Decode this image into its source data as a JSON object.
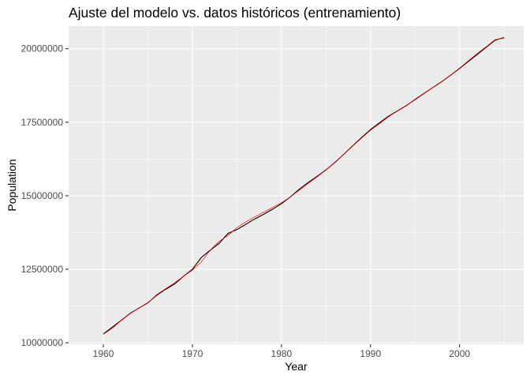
{
  "chart_data": {
    "type": "line",
    "title": "Ajuste del modelo vs. datos históricos (entrenamiento)",
    "xlabel": "Year",
    "ylabel": "Population",
    "xlim": [
      1956.1,
      2007.2
    ],
    "ylim": [
      9950000,
      20770000
    ],
    "x_ticks": [
      1960,
      1970,
      1980,
      1990,
      2000
    ],
    "y_ticks": [
      10000000,
      12500000,
      15000000,
      17500000,
      20000000
    ],
    "y_tick_labels": [
      "10000000",
      "12500000",
      "15000000",
      "17500000",
      "20000000"
    ],
    "x_minor_ticks": [
      1965,
      1975,
      1985,
      1995,
      2005
    ],
    "y_minor_ticks": [
      11250000,
      13750000,
      16250000,
      18750000
    ],
    "background": "#EBEBEB",
    "grid": true,
    "grid_color": "#FFFFFF",
    "legend": "none",
    "x": [
      1960,
      1961,
      1962,
      1963,
      1964,
      1965,
      1966,
      1967,
      1968,
      1969,
      1970,
      1971,
      1972,
      1973,
      1974,
      1975,
      1976,
      1977,
      1978,
      1979,
      1980,
      1981,
      1982,
      1983,
      1984,
      1985,
      1986,
      1987,
      1988,
      1989,
      1990,
      1991,
      1992,
      1993,
      1994,
      1995,
      1996,
      1997,
      1998,
      1999,
      2000,
      2001,
      2002,
      2003,
      2004,
      2005
    ],
    "series": [
      {
        "color": "#000000",
        "width": 1.1,
        "values": [
          10300000,
          10530000,
          10760000,
          11000000,
          11180000,
          11360000,
          11620000,
          11820000,
          12000000,
          12260000,
          12500000,
          12900000,
          13150000,
          13380000,
          13720000,
          13850000,
          14030000,
          14210000,
          14370000,
          14540000,
          14730000,
          14960000,
          15220000,
          15450000,
          15660000,
          15880000,
          16130000,
          16410000,
          16700000,
          16980000,
          17250000,
          17480000,
          17700000,
          17880000,
          18060000,
          18270000,
          18480000,
          18680000,
          18880000,
          19100000,
          19330000,
          19570000,
          19810000,
          20050000,
          20290000,
          20380000
        ]
      },
      {
        "color": "#FF0000",
        "width": 0.7,
        "values": [
          10290000,
          10490000,
          10760000,
          10990000,
          11180000,
          11350000,
          11640000,
          11840000,
          12040000,
          12260000,
          12470000,
          12750000,
          13150000,
          13450000,
          13650000,
          13920000,
          14110000,
          14280000,
          14440000,
          14600000,
          14760000,
          14960000,
          15190000,
          15420000,
          15640000,
          15880000,
          16140000,
          16410000,
          16690000,
          16960000,
          17230000,
          17450000,
          17680000,
          17880000,
          18070000,
          18260000,
          18470000,
          18680000,
          18880000,
          19100000,
          19340000,
          19590000,
          19840000,
          20070000,
          20310000,
          20360000
        ]
      }
    ]
  }
}
